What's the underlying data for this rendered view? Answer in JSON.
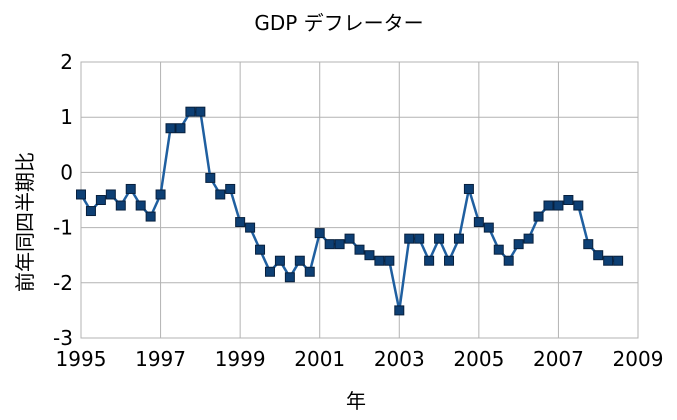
{
  "chart_data": {
    "type": "line",
    "title": "GDP デフレーター",
    "xlabel": "年",
    "ylabel": "前年同四半期比",
    "xlim": [
      1995,
      2009
    ],
    "ylim": [
      -3,
      2
    ],
    "x_ticks": [
      "1995",
      "1997",
      "1999",
      "2001",
      "2003",
      "2005",
      "2007",
      "2009"
    ],
    "y_ticks": [
      "2",
      "1",
      "0",
      "-1",
      "-2",
      "-3"
    ],
    "grid": true,
    "legend": "none",
    "colors": {
      "line": "#1f5fa0",
      "marker": "#0d3f74",
      "marker_edge": "#08203d"
    },
    "series": [
      {
        "x": [
          1995.0,
          1995.25,
          1995.5,
          1995.75,
          1996.0,
          1996.25,
          1996.5,
          1996.75,
          1997.0,
          1997.25,
          1997.5,
          1997.75,
          1998.0,
          1998.25,
          1998.5,
          1998.75,
          1999.0,
          1999.25,
          1999.5,
          1999.75,
          2000.0,
          2000.25,
          2000.5,
          2000.75,
          2001.0,
          2001.25,
          2001.5,
          2001.75,
          2002.0,
          2002.25,
          2002.5,
          2002.75,
          2003.0,
          2003.25,
          2003.5,
          2003.75,
          2004.0,
          2004.25,
          2004.5,
          2004.75,
          2005.0,
          2005.25,
          2005.5,
          2005.75,
          2006.0,
          2006.25,
          2006.5,
          2006.75,
          2007.0,
          2007.25,
          2007.5,
          2007.75,
          2008.0,
          2008.25,
          2008.5
        ],
        "values": [
          -0.4,
          -0.7,
          -0.5,
          -0.4,
          -0.6,
          -0.3,
          -0.6,
          -0.8,
          -0.4,
          0.8,
          0.8,
          1.1,
          1.1,
          -0.1,
          -0.4,
          -0.3,
          -0.9,
          -1.0,
          -1.4,
          -1.8,
          -1.6,
          -1.9,
          -1.6,
          -1.8,
          -1.1,
          -1.3,
          -1.3,
          -1.2,
          -1.4,
          -1.5,
          -1.6,
          -1.6,
          -2.5,
          -1.2,
          -1.2,
          -1.6,
          -1.2,
          -1.6,
          -1.2,
          -0.3,
          -0.9,
          -1.0,
          -1.4,
          -1.6,
          -1.3,
          -1.2,
          -0.8,
          -0.6,
          -0.6,
          -0.5,
          -0.6,
          -1.3,
          -1.5,
          -1.6,
          -1.6
        ]
      }
    ]
  }
}
